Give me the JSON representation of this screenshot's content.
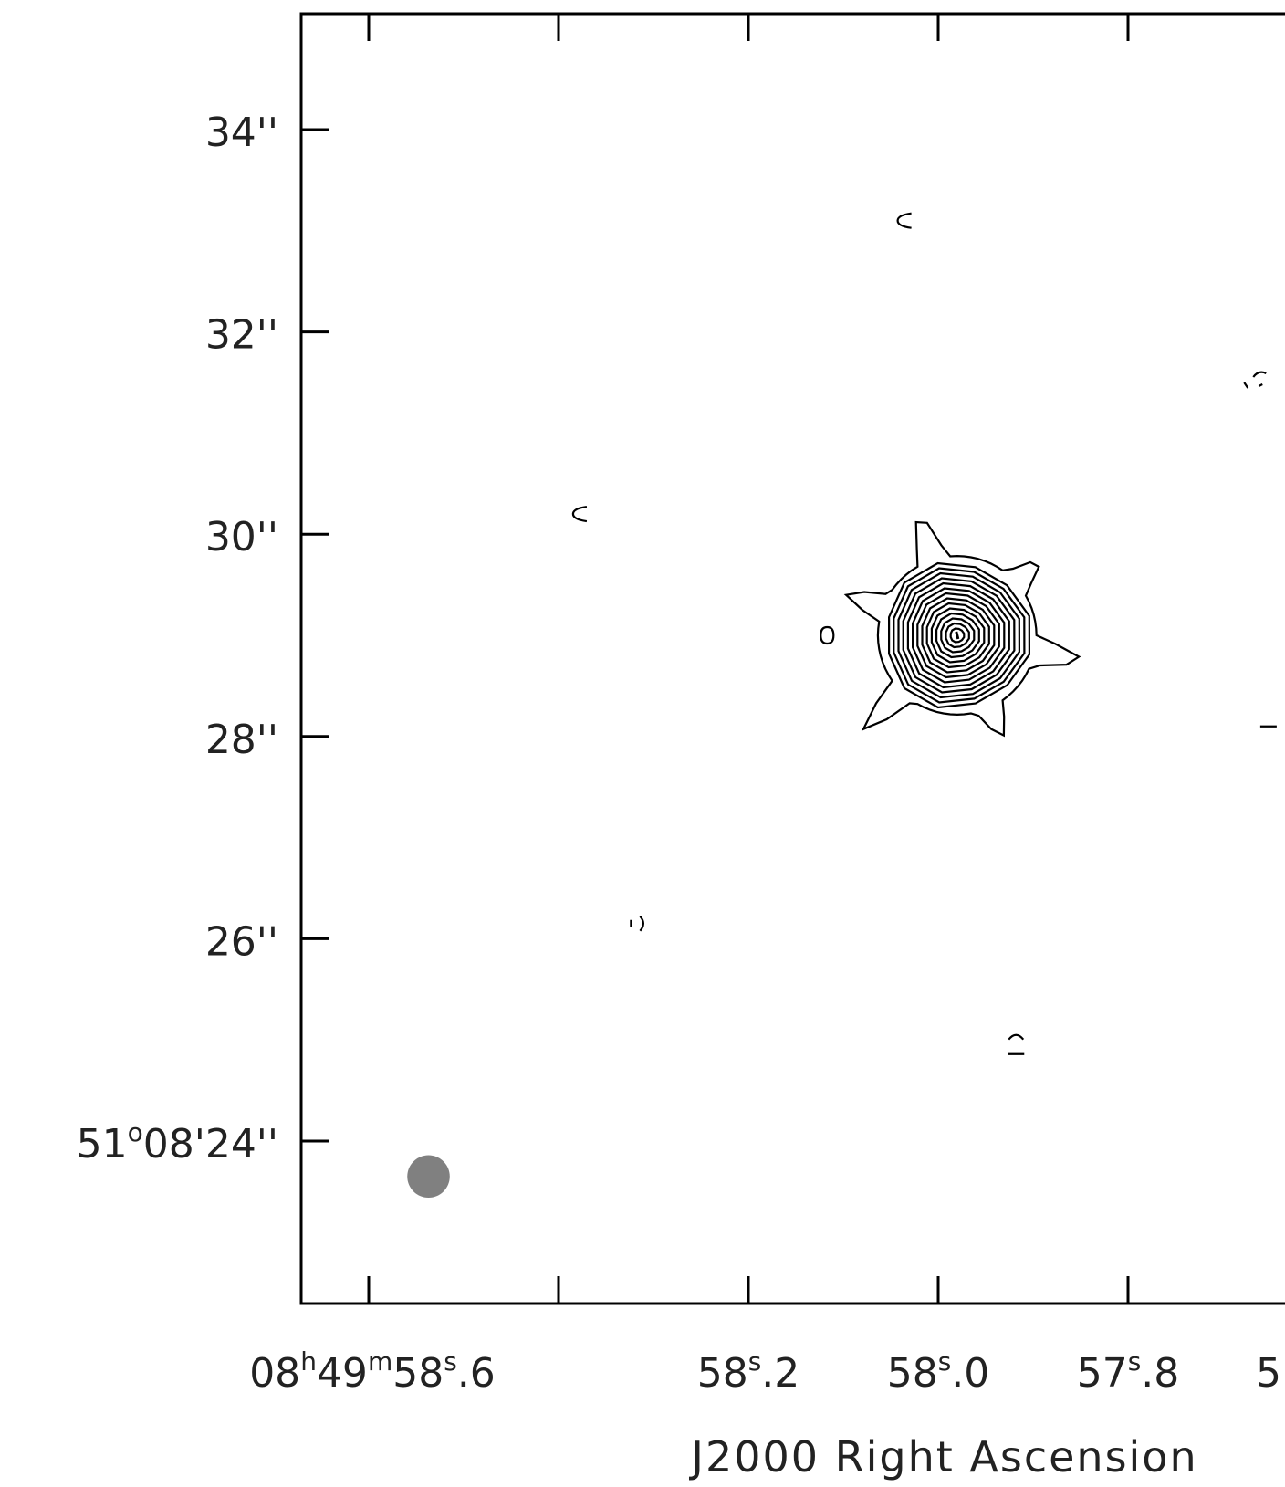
{
  "chart_data": {
    "type": "contour",
    "xlabel": "J2000 Right Ascension",
    "ylabel": "",
    "x_ticks": [
      {
        "ra_s": 58.6,
        "parts": [
          {
            "t": "08"
          },
          {
            "t": "h",
            "sup": true
          },
          {
            "t": "49"
          },
          {
            "t": "m",
            "sup": true
          },
          {
            "t": "58"
          },
          {
            "t": "s",
            "sup": true
          },
          {
            "t": ".6"
          }
        ]
      },
      {
        "ra_s": 58.4,
        "parts": []
      },
      {
        "ra_s": 58.2,
        "parts": [
          {
            "t": "58"
          },
          {
            "t": "s",
            "sup": true
          },
          {
            "t": ".2"
          }
        ]
      },
      {
        "ra_s": 58.0,
        "parts": [
          {
            "t": "58"
          },
          {
            "t": "s",
            "sup": true
          },
          {
            "t": ".0"
          }
        ]
      },
      {
        "ra_s": 57.8,
        "parts": [
          {
            "t": "57"
          },
          {
            "t": "s",
            "sup": true
          },
          {
            "t": ".8"
          }
        ]
      },
      {
        "ra_s": 57.6,
        "parts": [
          {
            "t": "5"
          }
        ]
      }
    ],
    "y_ticks": [
      {
        "dec_arcsec": 34,
        "parts": [
          {
            "t": "34''"
          }
        ]
      },
      {
        "dec_arcsec": 32,
        "parts": [
          {
            "t": "32''"
          }
        ]
      },
      {
        "dec_arcsec": 30,
        "parts": [
          {
            "t": "30''"
          }
        ]
      },
      {
        "dec_arcsec": 28,
        "parts": [
          {
            "t": "28''"
          }
        ]
      },
      {
        "dec_arcsec": 26,
        "parts": [
          {
            "t": "26''"
          }
        ]
      },
      {
        "dec_arcsec": 24,
        "parts": [
          {
            "t": "51"
          },
          {
            "t": "o",
            "sup": true
          },
          {
            "t": "08'24''"
          }
        ]
      }
    ],
    "xlim": [
      58.67,
      57.64
    ],
    "ylim": [
      22.4,
      35.2
    ],
    "source": {
      "ra_s": 57.98,
      "dec_arcsec": 29.0,
      "contour_levels": 14,
      "max_radius_arcsec": 0.7
    },
    "beam": {
      "ra_s": 58.537,
      "dec_arcsec": 23.65,
      "diameter_arcsec": 0.42,
      "color": "#808080"
    },
    "noise_blips": [
      {
        "ra_s": 58.035,
        "dec_arcsec": 33.1,
        "shape": "c"
      },
      {
        "ra_s": 58.377,
        "dec_arcsec": 30.2,
        "shape": "c"
      },
      {
        "ra_s": 58.117,
        "dec_arcsec": 29.0,
        "shape": "o"
      },
      {
        "ra_s": 58.316,
        "dec_arcsec": 26.15,
        "shape": "paren"
      },
      {
        "ra_s": 57.918,
        "dec_arcsec": 24.95,
        "shape": "cap"
      },
      {
        "ra_s": 57.668,
        "dec_arcsec": 31.5,
        "shape": "dots"
      },
      {
        "ra_s": 57.653,
        "dec_arcsec": 28.1,
        "shape": "dash"
      }
    ]
  }
}
